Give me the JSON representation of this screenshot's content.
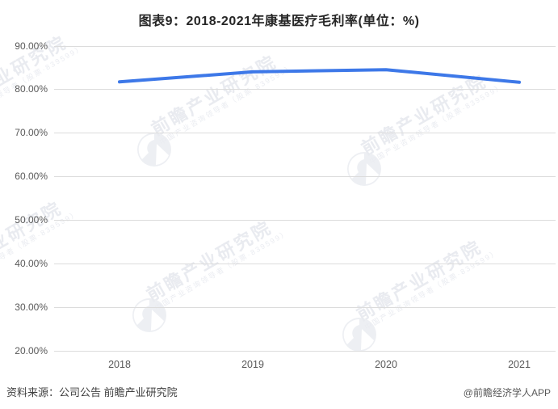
{
  "title": "图表9：2018-2021年康基医疗毛利率(单位：%)",
  "source_note": "资料来源：公司公告 前瞻产业研究院",
  "credit": "@前瞻经济学人APP",
  "watermark": {
    "brand": "前瞻产业研究院",
    "tagline": "中国产业咨询领导者（股票·839599）"
  },
  "colors": {
    "line": "#3d78e8",
    "gridline": "#dcdcdc",
    "axis_text": "#595959",
    "title_text": "#262626",
    "watermark_text": "#e9ebf0"
  },
  "chart_data": {
    "type": "line",
    "title": "图表9：2018-2021年康基医疗毛利率(单位：%)",
    "series_name": "康基医疗毛利率",
    "categories": [
      "2018",
      "2019",
      "2020",
      "2021"
    ],
    "values": [
      81.7,
      84.0,
      84.5,
      81.6
    ],
    "unit": "%",
    "xlabel": "",
    "ylabel": "",
    "ylim": [
      20,
      90
    ],
    "ytick_step": 10,
    "ytick_labels": [
      "90.00%",
      "80.00%",
      "70.00%",
      "60.00%",
      "50.00%",
      "40.00%",
      "30.00%",
      "20.00%"
    ],
    "grid": true,
    "legend": false
  }
}
